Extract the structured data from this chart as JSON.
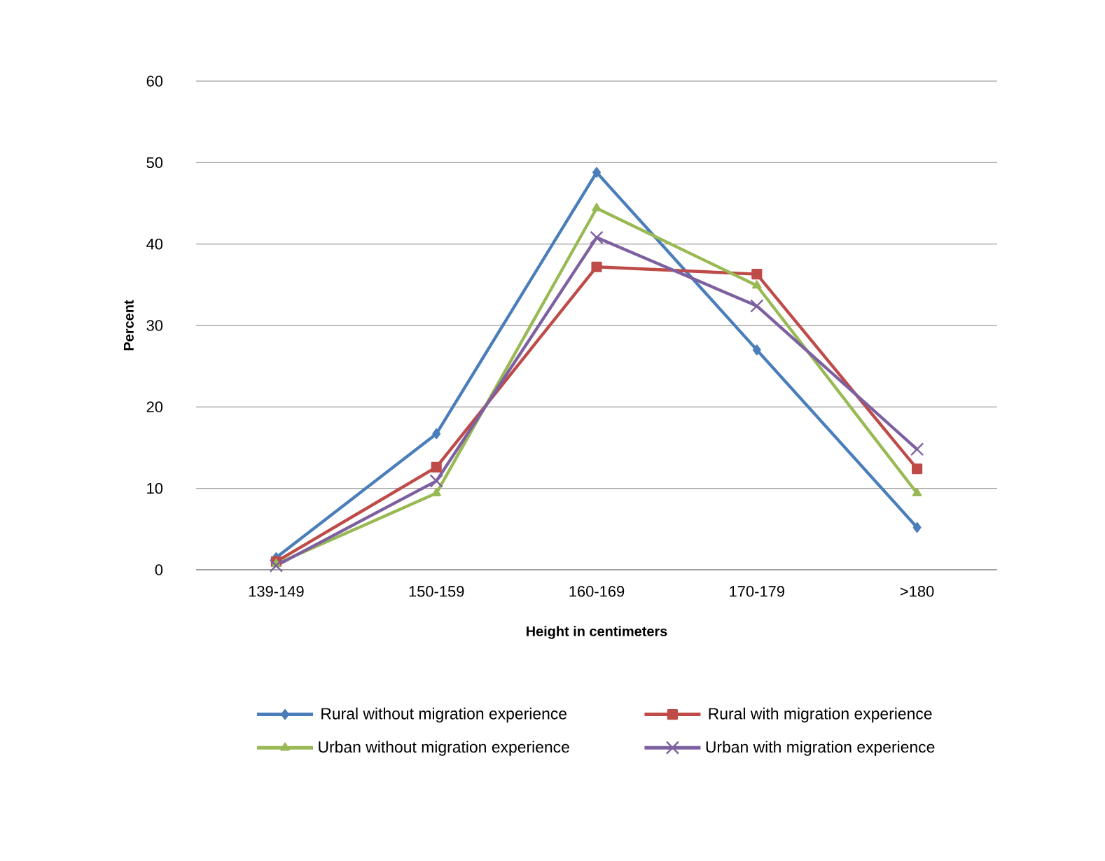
{
  "chart_data": {
    "type": "line",
    "xlabel": "Height in centimeters",
    "ylabel": "Percent",
    "categories": [
      "139-149",
      "150-159",
      "160-169",
      "170-179",
      ">180"
    ],
    "series": [
      {
        "name": "Rural without migration experience",
        "color": "#4a7ebb",
        "marker": "diamond",
        "values": [
          1.5,
          16.7,
          48.8,
          27.0,
          5.2
        ]
      },
      {
        "name": "Rural with migration experience",
        "color": "#be4b48",
        "marker": "square",
        "values": [
          1.0,
          12.6,
          37.2,
          36.3,
          12.4
        ]
      },
      {
        "name": "Urban without migration experience",
        "color": "#98b954",
        "marker": "triangle",
        "values": [
          0.7,
          9.4,
          44.4,
          34.9,
          9.4
        ]
      },
      {
        "name": "Urban with migration experience",
        "color": "#7d60a0",
        "marker": "cross",
        "values": [
          0.5,
          10.9,
          40.8,
          32.4,
          14.8
        ]
      }
    ],
    "ylim": [
      0,
      60
    ],
    "yticks": [
      0,
      10,
      20,
      30,
      40,
      50,
      60
    ],
    "grid": "y",
    "legend": "bottom"
  }
}
